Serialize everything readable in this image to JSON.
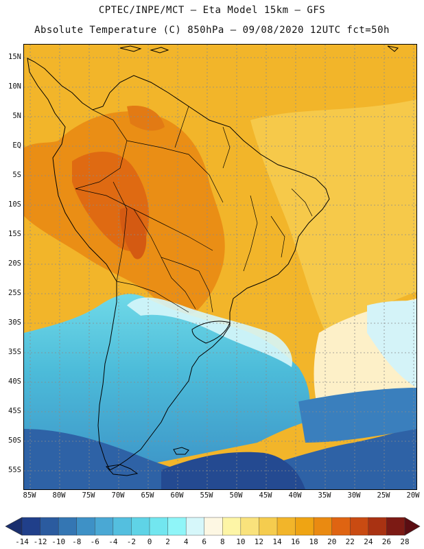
{
  "header": {
    "line1": "CPTEC/INPE/MCT –  Eta Model 15km – GFS",
    "line2": "Absolute Temperature (C) 850hPa – 09/08/2020 12UTC fct=50h"
  },
  "map": {
    "lat_labels": [
      "15N",
      "10N",
      "5N",
      "EQ",
      "5S",
      "10S",
      "15S",
      "20S",
      "25S",
      "30S",
      "35S",
      "40S",
      "45S",
      "50S",
      "55S"
    ],
    "lat_values": [
      15,
      10,
      5,
      0,
      -5,
      -10,
      -15,
      -20,
      -25,
      -30,
      -35,
      -40,
      -45,
      -50,
      -55
    ],
    "lon_labels": [
      "85W",
      "80W",
      "75W",
      "70W",
      "65W",
      "60W",
      "55W",
      "50W",
      "45W",
      "40W",
      "35W",
      "30W",
      "25W",
      "20W"
    ],
    "lon_values": [
      -85,
      -80,
      -75,
      -70,
      -65,
      -60,
      -55,
      -50,
      -45,
      -40,
      -35,
      -30,
      -25,
      -20
    ]
  },
  "colorbar": {
    "labels": [
      "-14",
      "-12",
      "-10",
      "-8",
      "-6",
      "-4",
      "-2",
      "0",
      "2",
      "4",
      "6",
      "8",
      "10",
      "12",
      "14",
      "16",
      "18",
      "20",
      "22",
      "24",
      "26",
      "28"
    ],
    "colors": [
      "#203f8a",
      "#2b5b9f",
      "#3476b3",
      "#3e91c6",
      "#4aa8d4",
      "#54bfdf",
      "#5fd3e6",
      "#72e6ef",
      "#8ff5f8",
      "#d6f7fa",
      "#fdf7e3",
      "#fdf5a6",
      "#f9e27c",
      "#f5cc4e",
      "#f2b52a",
      "#efa413",
      "#ea8a11",
      "#df6412",
      "#c94b12",
      "#a93212",
      "#7c1a14"
    ],
    "under_color": "#1a2f6e",
    "over_color": "#5a0d12"
  }
}
